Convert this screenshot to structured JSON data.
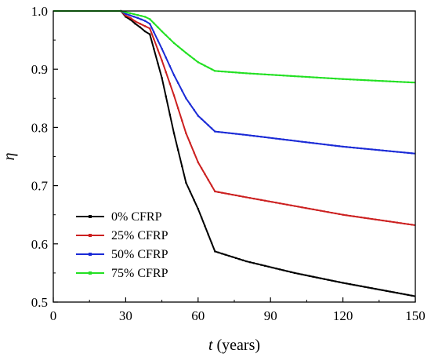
{
  "chart_data": {
    "type": "line",
    "xlabel_var": "t",
    "xlabel_unit": " (years)",
    "ylabel": "η",
    "xlim": [
      0,
      150
    ],
    "ylim": [
      0.5,
      1.0
    ],
    "xticks": [
      0,
      30,
      60,
      90,
      120,
      150
    ],
    "yticks": [
      0.5,
      0.6,
      0.7,
      0.8,
      0.9,
      1.0
    ],
    "xtick_labels": [
      "0",
      "30",
      "60",
      "90",
      "120",
      "150"
    ],
    "ytick_labels": [
      "0.5",
      "0.6",
      "0.7",
      "0.8",
      "0.9",
      "1.0"
    ],
    "legend_position": "lower-left",
    "series": [
      {
        "name": "0% CFRP",
        "color": "#000000",
        "x": [
          0,
          28,
          30,
          32,
          34,
          36,
          38,
          40,
          45,
          50,
          55,
          60,
          67,
          80,
          100,
          120,
          150
        ],
        "y": [
          1.0,
          1.0,
          0.99,
          0.985,
          0.978,
          0.972,
          0.965,
          0.96,
          0.885,
          0.79,
          0.705,
          0.66,
          0.587,
          0.57,
          0.55,
          0.533,
          0.51
        ]
      },
      {
        "name": "25% CFRP",
        "color": "#cc2020",
        "x": [
          0,
          28,
          30,
          32,
          34,
          36,
          38,
          40,
          45,
          50,
          55,
          60,
          67,
          80,
          100,
          120,
          150
        ],
        "y": [
          1.0,
          1.0,
          0.992,
          0.988,
          0.982,
          0.978,
          0.974,
          0.97,
          0.915,
          0.855,
          0.79,
          0.74,
          0.69,
          0.68,
          0.665,
          0.65,
          0.632
        ]
      },
      {
        "name": "50% CFRP",
        "color": "#1a2ad6",
        "x": [
          0,
          28,
          30,
          35,
          38,
          40,
          45,
          50,
          55,
          60,
          67,
          80,
          100,
          120,
          150
        ],
        "y": [
          1.0,
          1.0,
          0.995,
          0.988,
          0.983,
          0.978,
          0.935,
          0.89,
          0.85,
          0.82,
          0.793,
          0.787,
          0.777,
          0.767,
          0.755
        ]
      },
      {
        "name": "75% CFRP",
        "color": "#22e022",
        "x": [
          0,
          28,
          30,
          35,
          38,
          40,
          45,
          50,
          55,
          60,
          67,
          80,
          100,
          120,
          150
        ],
        "y": [
          1.0,
          1.0,
          0.998,
          0.993,
          0.99,
          0.986,
          0.965,
          0.945,
          0.928,
          0.912,
          0.897,
          0.893,
          0.888,
          0.883,
          0.877
        ]
      }
    ]
  }
}
